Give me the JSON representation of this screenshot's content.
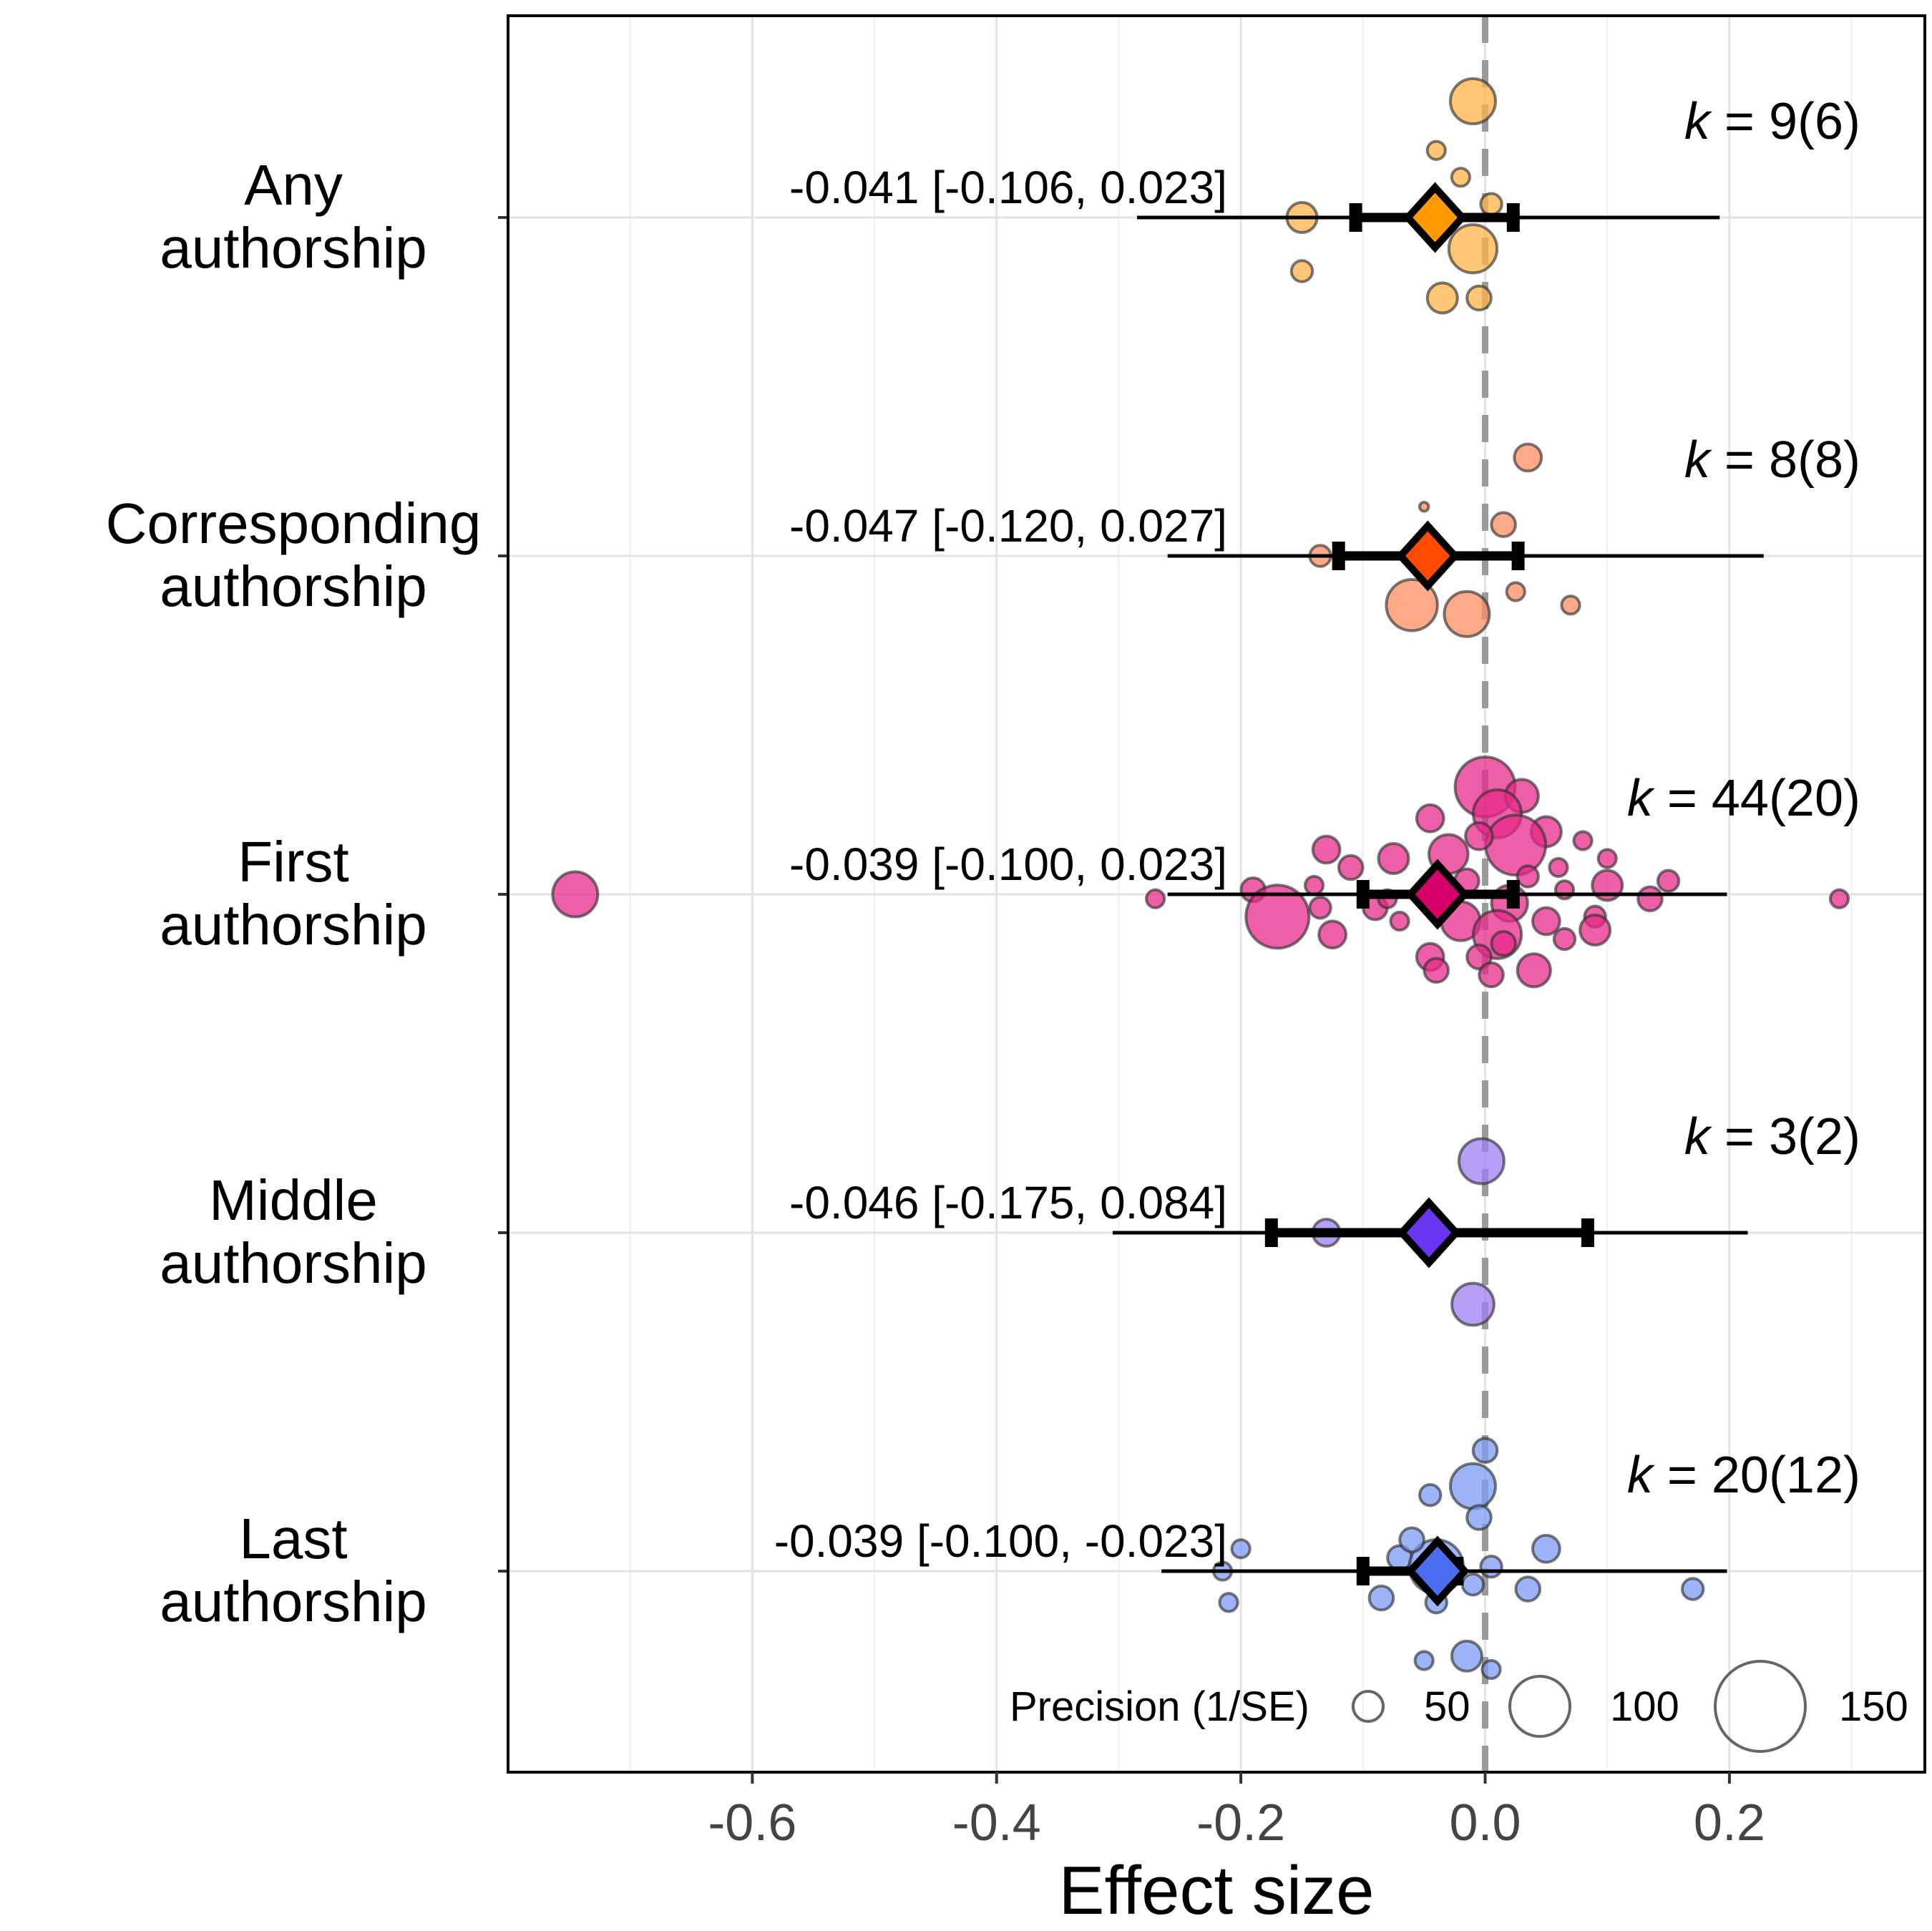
{
  "chart_data": {
    "type": "scatter",
    "xlabel": "Effect size",
    "xlim": [
      -0.8,
      0.36
    ],
    "xticks": [
      {
        "value": -0.6,
        "label": "-0.6"
      },
      {
        "value": -0.4,
        "label": "-0.4"
      },
      {
        "value": -0.2,
        "label": "-0.2"
      },
      {
        "value": 0.0,
        "label": "0.0"
      },
      {
        "value": 0.2,
        "label": "0.2"
      }
    ],
    "reference_line": 0,
    "grid": true,
    "legend": {
      "title": "Precision (1/SE)",
      "entries": [
        {
          "value": 50,
          "label": "50"
        },
        {
          "value": 100,
          "label": "100"
        },
        {
          "value": 150,
          "label": "150"
        }
      ],
      "placement": "bottom-right"
    },
    "categories": [
      {
        "name_line1": "Any",
        "name_line2": "authorship",
        "color": "#FDB347",
        "diamond_color": "#FF9A00",
        "estimate": -0.041,
        "ci": [
          -0.106,
          0.023
        ],
        "pi": [
          -0.285,
          0.192
        ],
        "estimate_label": "-0.041 [-0.106, 0.023]",
        "k_main": "9",
        "k_paren": "6",
        "points": [
          {
            "x": -0.01,
            "y": 1.3,
            "p": 75
          },
          {
            "x": -0.04,
            "y": 0.75,
            "p": 30
          },
          {
            "x": -0.02,
            "y": 0.45,
            "p": 30
          },
          {
            "x": 0.005,
            "y": 0.15,
            "p": 35
          },
          {
            "x": -0.15,
            "y": 0.0,
            "p": 50
          },
          {
            "x": -0.01,
            "y": -0.35,
            "p": 80
          },
          {
            "x": -0.15,
            "y": -0.6,
            "p": 35
          },
          {
            "x": -0.035,
            "y": -0.9,
            "p": 50
          },
          {
            "x": -0.005,
            "y": -0.9,
            "p": 40
          }
        ]
      },
      {
        "name_line1": "Corresponding",
        "name_line2": "authorship",
        "color": "#FC8D62",
        "diamond_color": "#FF4A00",
        "estimate": -0.047,
        "ci": [
          -0.12,
          0.027
        ],
        "pi": [
          -0.26,
          0.228
        ],
        "estimate_label": "-0.047 [-0.120, 0.027]",
        "k_main": "8",
        "k_paren": "8",
        "points": [
          {
            "x": 0.035,
            "y": 1.1,
            "p": 45
          },
          {
            "x": -0.05,
            "y": 0.55,
            "p": 15
          },
          {
            "x": 0.015,
            "y": 0.35,
            "p": 40
          },
          {
            "x": -0.135,
            "y": 0.0,
            "p": 35
          },
          {
            "x": 0.025,
            "y": -0.4,
            "p": 30
          },
          {
            "x": 0.07,
            "y": -0.55,
            "p": 30
          },
          {
            "x": -0.06,
            "y": -0.55,
            "p": 85
          },
          {
            "x": -0.015,
            "y": -0.65,
            "p": 75
          }
        ]
      },
      {
        "name_line1": "First",
        "name_line2": "authorship",
        "color": "#E7298A",
        "diamond_color": "#D5006A",
        "estimate": -0.039,
        "ci": [
          -0.1,
          0.023
        ],
        "pi": [
          -0.26,
          0.198
        ],
        "estimate_label": "-0.039 [-0.100, 0.023]",
        "k_main": "44",
        "k_paren": "20",
        "points": [
          {
            "x": -0.745,
            "y": 0.0,
            "p": 75
          },
          {
            "x": 0.0,
            "y": 1.2,
            "p": 100
          },
          {
            "x": 0.03,
            "y": 1.1,
            "p": 55
          },
          {
            "x": 0.01,
            "y": 0.9,
            "p": 80
          },
          {
            "x": -0.045,
            "y": 0.85,
            "p": 45
          },
          {
            "x": 0.05,
            "y": 0.7,
            "p": 50
          },
          {
            "x": 0.08,
            "y": 0.6,
            "p": 30
          },
          {
            "x": -0.13,
            "y": 0.5,
            "p": 45
          },
          {
            "x": -0.075,
            "y": 0.4,
            "p": 50
          },
          {
            "x": -0.03,
            "y": 0.45,
            "p": 65
          },
          {
            "x": 0.025,
            "y": 0.55,
            "p": 100
          },
          {
            "x": 0.06,
            "y": 0.3,
            "p": 30
          },
          {
            "x": -0.19,
            "y": 0.05,
            "p": 40
          },
          {
            "x": -0.14,
            "y": 0.1,
            "p": 30
          },
          {
            "x": 0.1,
            "y": 0.1,
            "p": 50
          },
          {
            "x": 0.15,
            "y": 0.15,
            "p": 35
          },
          {
            "x": -0.27,
            "y": -0.05,
            "p": 30
          },
          {
            "x": -0.17,
            "y": -0.25,
            "p": 105
          },
          {
            "x": -0.135,
            "y": -0.15,
            "p": 35
          },
          {
            "x": -0.09,
            "y": -0.15,
            "p": 40
          },
          {
            "x": 0.02,
            "y": -0.1,
            "p": 60
          },
          {
            "x": 0.135,
            "y": -0.05,
            "p": 40
          },
          {
            "x": 0.29,
            "y": -0.05,
            "p": 30
          },
          {
            "x": -0.07,
            "y": -0.3,
            "p": 30
          },
          {
            "x": -0.02,
            "y": -0.3,
            "p": 65
          },
          {
            "x": 0.05,
            "y": -0.3,
            "p": 45
          },
          {
            "x": 0.09,
            "y": -0.25,
            "p": 35
          },
          {
            "x": -0.125,
            "y": -0.45,
            "p": 45
          },
          {
            "x": 0.01,
            "y": -0.45,
            "p": 80
          },
          {
            "x": 0.065,
            "y": -0.5,
            "p": 35
          },
          {
            "x": 0.09,
            "y": -0.4,
            "p": 50
          },
          {
            "x": 0.015,
            "y": -0.55,
            "p": 40
          },
          {
            "x": -0.045,
            "y": -0.7,
            "p": 45
          },
          {
            "x": -0.005,
            "y": -0.7,
            "p": 40
          },
          {
            "x": -0.04,
            "y": -0.85,
            "p": 40
          },
          {
            "x": 0.04,
            "y": -0.85,
            "p": 55
          },
          {
            "x": 0.005,
            "y": -0.9,
            "p": 40
          },
          {
            "x": -0.015,
            "y": 0.15,
            "p": 40
          },
          {
            "x": 0.035,
            "y": 0.2,
            "p": 35
          },
          {
            "x": -0.005,
            "y": 0.65,
            "p": 45
          },
          {
            "x": 0.1,
            "y": 0.4,
            "p": 30
          },
          {
            "x": -0.11,
            "y": 0.3,
            "p": 40
          },
          {
            "x": 0.065,
            "y": 0.05,
            "p": 30
          },
          {
            "x": -0.08,
            "y": -0.05,
            "p": 30
          }
        ]
      },
      {
        "name_line1": "Middle",
        "name_line2": "authorship",
        "color": "#9E7FF2",
        "diamond_color": "#6A35F0",
        "estimate": -0.046,
        "ci": [
          -0.175,
          0.084
        ],
        "pi": [
          -0.305,
          0.215
        ],
        "estimate_label": "-0.046 [-0.175, 0.084]",
        "k_main": "3",
        "k_paren": "2",
        "points": [
          {
            "x": -0.003,
            "y": 0.8,
            "p": 75
          },
          {
            "x": -0.13,
            "y": 0.0,
            "p": 45
          },
          {
            "x": -0.01,
            "y": -0.8,
            "p": 70
          }
        ]
      },
      {
        "name_line1": "Last",
        "name_line2": "authorship",
        "color": "#7C9BF5",
        "diamond_color": "#4A6CF0",
        "estimate": -0.039,
        "ci": [
          -0.1,
          -0.023
        ],
        "pi": [
          -0.265,
          0.198
        ],
        "estimate_label": "-0.039 [-0.100, -0.023]",
        "k_main": "20",
        "k_paren": "12",
        "points": [
          {
            "x": 0.0,
            "y": 1.35,
            "p": 40
          },
          {
            "x": -0.01,
            "y": 0.95,
            "p": 75
          },
          {
            "x": -0.045,
            "y": 0.85,
            "p": 35
          },
          {
            "x": -0.005,
            "y": 0.6,
            "p": 40
          },
          {
            "x": 0.05,
            "y": 0.25,
            "p": 45
          },
          {
            "x": -0.2,
            "y": 0.25,
            "p": 30
          },
          {
            "x": -0.07,
            "y": 0.15,
            "p": 40
          },
          {
            "x": -0.04,
            "y": 0.05,
            "p": 90
          },
          {
            "x": 0.005,
            "y": 0.05,
            "p": 35
          },
          {
            "x": -0.215,
            "y": 0.0,
            "p": 30
          },
          {
            "x": -0.01,
            "y": -0.15,
            "p": 35
          },
          {
            "x": 0.035,
            "y": -0.2,
            "p": 40
          },
          {
            "x": 0.17,
            "y": -0.2,
            "p": 35
          },
          {
            "x": -0.085,
            "y": -0.3,
            "p": 40
          },
          {
            "x": -0.04,
            "y": -0.35,
            "p": 35
          },
          {
            "x": -0.21,
            "y": -0.35,
            "p": 30
          },
          {
            "x": -0.05,
            "y": -1.0,
            "p": 30
          },
          {
            "x": -0.015,
            "y": -0.95,
            "p": 50
          },
          {
            "x": 0.005,
            "y": -1.1,
            "p": 30
          },
          {
            "x": -0.06,
            "y": 0.35,
            "p": 40
          }
        ]
      }
    ]
  }
}
